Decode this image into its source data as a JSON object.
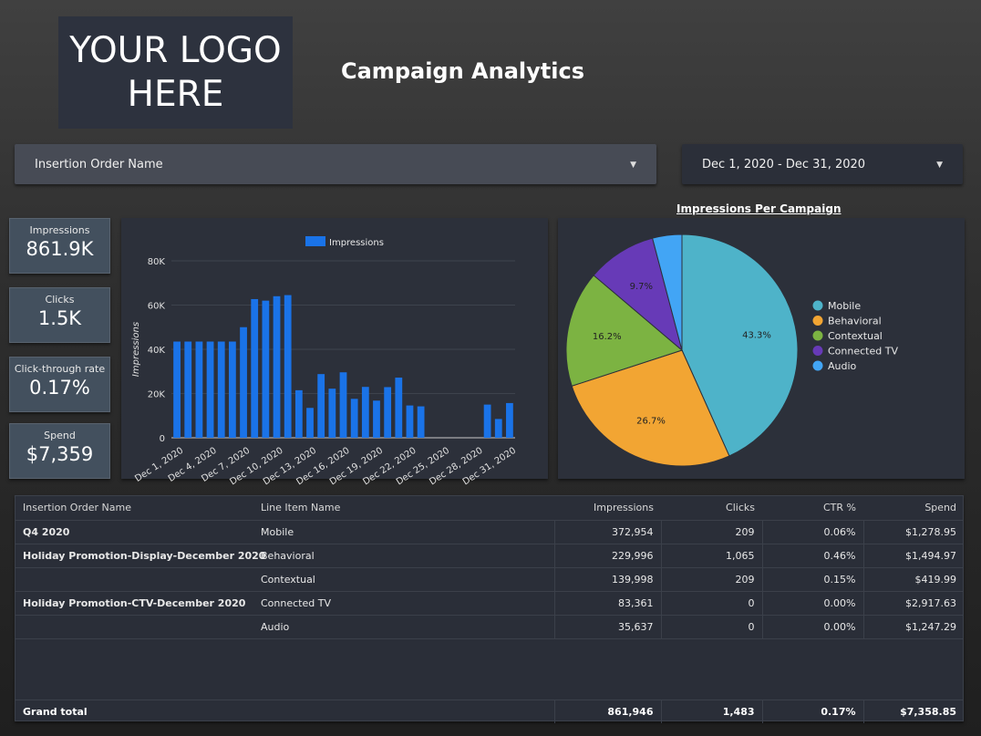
{
  "logo": {
    "line1": "YOUR LOGO",
    "line2": "HERE"
  },
  "page_title": "Campaign Analytics",
  "filters": {
    "insertion_order": "Insertion Order Name",
    "date_range": "Dec 1, 2020 - Dec 31, 2020"
  },
  "kpis": [
    {
      "label": "Impressions",
      "value": "861.9K"
    },
    {
      "label": "Clicks",
      "value": "1.5K"
    },
    {
      "label": "Click-through rate",
      "value": "0.17%"
    },
    {
      "label": "Spend",
      "value": "$7,359"
    }
  ],
  "chart_data": [
    {
      "type": "bar",
      "legend": "Impressions",
      "legend_position": "top",
      "ylabel": "Impressions",
      "ylim": [
        0,
        80000
      ],
      "yticks": [
        "0",
        "20K",
        "40K",
        "60K",
        "80K"
      ],
      "grid": true,
      "color": "#1a73e8",
      "xtick_labels": [
        "Dec 1, 2020",
        "Dec 4, 2020",
        "Dec 7, 2020",
        "Dec 10, 2020",
        "Dec 13, 2020",
        "Dec 16, 2020",
        "Dec 19, 2020",
        "Dec 22, 2020",
        "Dec 25, 2020",
        "Dec 28, 2020",
        "Dec 31, 2020"
      ],
      "x": [
        "Dec 1, 2020",
        "Dec 2, 2020",
        "Dec 3, 2020",
        "Dec 4, 2020",
        "Dec 5, 2020",
        "Dec 6, 2020",
        "Dec 7, 2020",
        "Dec 8, 2020",
        "Dec 9, 2020",
        "Dec 10, 2020",
        "Dec 11, 2020",
        "Dec 12, 2020",
        "Dec 13, 2020",
        "Dec 14, 2020",
        "Dec 15, 2020",
        "Dec 16, 2020",
        "Dec 17, 2020",
        "Dec 18, 2020",
        "Dec 19, 2020",
        "Dec 20, 2020",
        "Dec 21, 2020",
        "Dec 22, 2020",
        "Dec 23, 2020",
        "Dec 24, 2020",
        "Dec 25, 2020",
        "Dec 26, 2020",
        "Dec 27, 2020",
        "Dec 28, 2020",
        "Dec 29, 2020",
        "Dec 30, 2020",
        "Dec 31, 2020"
      ],
      "values": [
        43500,
        43500,
        43500,
        43500,
        43500,
        43500,
        50000,
        62700,
        62000,
        64000,
        64500,
        21500,
        13500,
        28800,
        22200,
        29600,
        17600,
        23000,
        16800,
        22900,
        27200,
        14600,
        14200,
        0,
        0,
        0,
        0,
        0,
        15000,
        8500,
        15700
      ]
    },
    {
      "type": "pie",
      "title": "Impressions Per Campaign",
      "legend_position": "right",
      "slices": [
        {
          "label": "Mobile",
          "value": 43.3,
          "text": "43.3%",
          "color": "#4eb3c9"
        },
        {
          "label": "Behavioral",
          "value": 26.7,
          "text": "26.7%",
          "color": "#f2a533"
        },
        {
          "label": "Contextual",
          "value": 16.2,
          "text": "16.2%",
          "color": "#7cb342"
        },
        {
          "label": "Connected TV",
          "value": 9.7,
          "text": "9.7%",
          "color": "#673ab7"
        },
        {
          "label": "Audio",
          "value": 4.1,
          "text": "",
          "color": "#42a5f5"
        }
      ]
    }
  ],
  "table": {
    "columns": [
      "Insertion Order Name",
      "Line Item Name",
      "Impressions",
      "Clicks",
      "CTR %",
      "Spend"
    ],
    "rows": [
      [
        "Q4 2020",
        "Mobile",
        "372,954",
        "209",
        "0.06%",
        "$1,278.95"
      ],
      [
        "Holiday Promotion-Display-December 2020",
        "Behavioral",
        "229,996",
        "1,065",
        "0.46%",
        "$1,494.97"
      ],
      [
        "",
        "Contextual",
        "139,998",
        "209",
        "0.15%",
        "$419.99"
      ],
      [
        "Holiday Promotion-CTV-December 2020",
        "Connected TV",
        "83,361",
        "0",
        "0.00%",
        "$2,917.63"
      ],
      [
        "",
        "Audio",
        "35,637",
        "0",
        "0.00%",
        "$1,247.29"
      ]
    ],
    "grand_total": [
      "Grand total",
      "",
      "861,946",
      "1,483",
      "0.17%",
      "$7,358.85"
    ]
  }
}
